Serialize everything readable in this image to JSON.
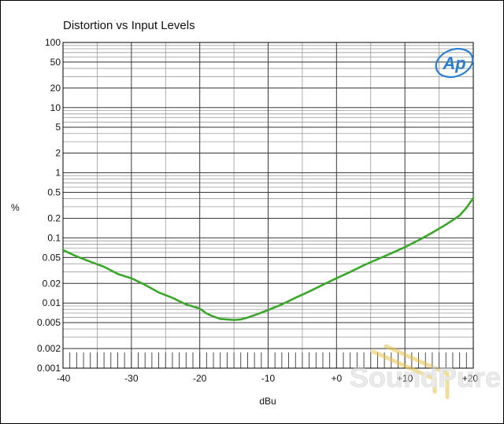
{
  "chart_data": {
    "type": "line",
    "title": "Distortion vs Input Levels",
    "xlabel": "dBu",
    "ylabel": "%",
    "xlim": [
      -40,
      20
    ],
    "ylim": [
      0.001,
      100
    ],
    "yscale": "log",
    "grid": true,
    "x_ticks": [
      -40,
      -30,
      -20,
      -10,
      0,
      10,
      20
    ],
    "x_tick_labels": [
      "-40",
      "-30",
      "-20",
      "-10",
      "+0",
      "+10",
      "+20"
    ],
    "y_ticks": [
      0.001,
      0.002,
      0.005,
      0.01,
      0.02,
      0.05,
      0.1,
      0.2,
      0.5,
      1,
      2,
      5,
      10,
      20,
      50,
      100
    ],
    "y_tick_labels": [
      "0.001",
      "0.002",
      "0.005",
      "0.01",
      "0.02",
      "0.05",
      "0.1",
      "0.2",
      "0.5",
      "1",
      "2",
      "5",
      "10",
      "20",
      "50",
      "100"
    ],
    "series": [
      {
        "color": "#3aa62a",
        "x": [
          -40,
          -38,
          -36,
          -34,
          -32,
          -30,
          -28,
          -26,
          -24,
          -22,
          -20,
          -19,
          -18,
          -17,
          -16,
          -15,
          -14,
          -13,
          -12,
          -10,
          -8,
          -6,
          -4,
          -2,
          0,
          2,
          4,
          6,
          8,
          10,
          12,
          14,
          16,
          18,
          19,
          20
        ],
        "y": [
          0.065,
          0.052,
          0.043,
          0.036,
          0.028,
          0.024,
          0.019,
          0.0145,
          0.012,
          0.0095,
          0.0082,
          0.0069,
          0.0062,
          0.0057,
          0.0056,
          0.0055,
          0.0056,
          0.006,
          0.0065,
          0.0078,
          0.0095,
          0.012,
          0.015,
          0.019,
          0.024,
          0.03,
          0.038,
          0.047,
          0.058,
          0.072,
          0.092,
          0.12,
          0.16,
          0.22,
          0.29,
          0.41
        ]
      }
    ]
  },
  "brand": {
    "logo_text": "Ap",
    "watermark": "SoundPure",
    "logo_color": "#2a7fd0"
  }
}
